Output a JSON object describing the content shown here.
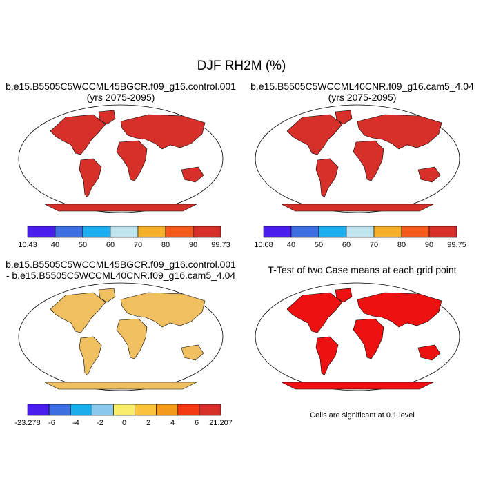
{
  "title": "DJF RH2M (%)",
  "panels": [
    {
      "id": "p1",
      "title_lines": [
        "b.e15.B5505C5WCCML45BGCR.f09_g16.control.001",
        "(yrs 2075-2095)"
      ],
      "fill": "#d7302b"
    },
    {
      "id": "p2",
      "title_lines": [
        "b.e15.B5505C5WCCML40CNR.f09_g16.cam5_4.04",
        "(yrs 2075-2095)"
      ],
      "fill": "#d7302b"
    },
    {
      "id": "p3",
      "title_lines": [
        "b.e15.B5505C5WCCML45BGCR.f09_g16.control.001",
        "- b.e15.B5505C5WCCML40CNR.f09_g16.cam5_4.04"
      ],
      "fill": "#f0c060"
    },
    {
      "id": "p4",
      "title_lines": [
        "T-Test of two Case means at each grid point"
      ],
      "fill": "#ee1111"
    }
  ],
  "colorbars": [
    {
      "id": "cb1",
      "labels": [
        "10.43",
        "40",
        "50",
        "60",
        "70",
        "80",
        "90",
        "99.73"
      ],
      "colors": [
        "#4b1ef0",
        "#3c6fe0",
        "#1aaeee",
        "#bfe4f0",
        "#f4b02a",
        "#f45a1c",
        "#d7302b"
      ]
    },
    {
      "id": "cb2",
      "labels": [
        "10.08",
        "40",
        "50",
        "60",
        "70",
        "80",
        "90",
        "99.75"
      ],
      "colors": [
        "#4b1ef0",
        "#3c6fe0",
        "#1aaeee",
        "#bfe4f0",
        "#f4b02a",
        "#f45a1c",
        "#d7302b"
      ]
    },
    {
      "id": "cb3",
      "labels": [
        "-23.278",
        "-6",
        "-4",
        "-2",
        "0",
        "2",
        "4",
        "6",
        "21.207"
      ],
      "colors": [
        "#4b1ef0",
        "#3c6fe0",
        "#1aaeee",
        "#8ac8ee",
        "#f8ec6c",
        "#f8c23c",
        "#f49a1a",
        "#f43a12",
        "#d7302b"
      ]
    }
  ],
  "note": "Cells are significant at 0.1 level"
}
